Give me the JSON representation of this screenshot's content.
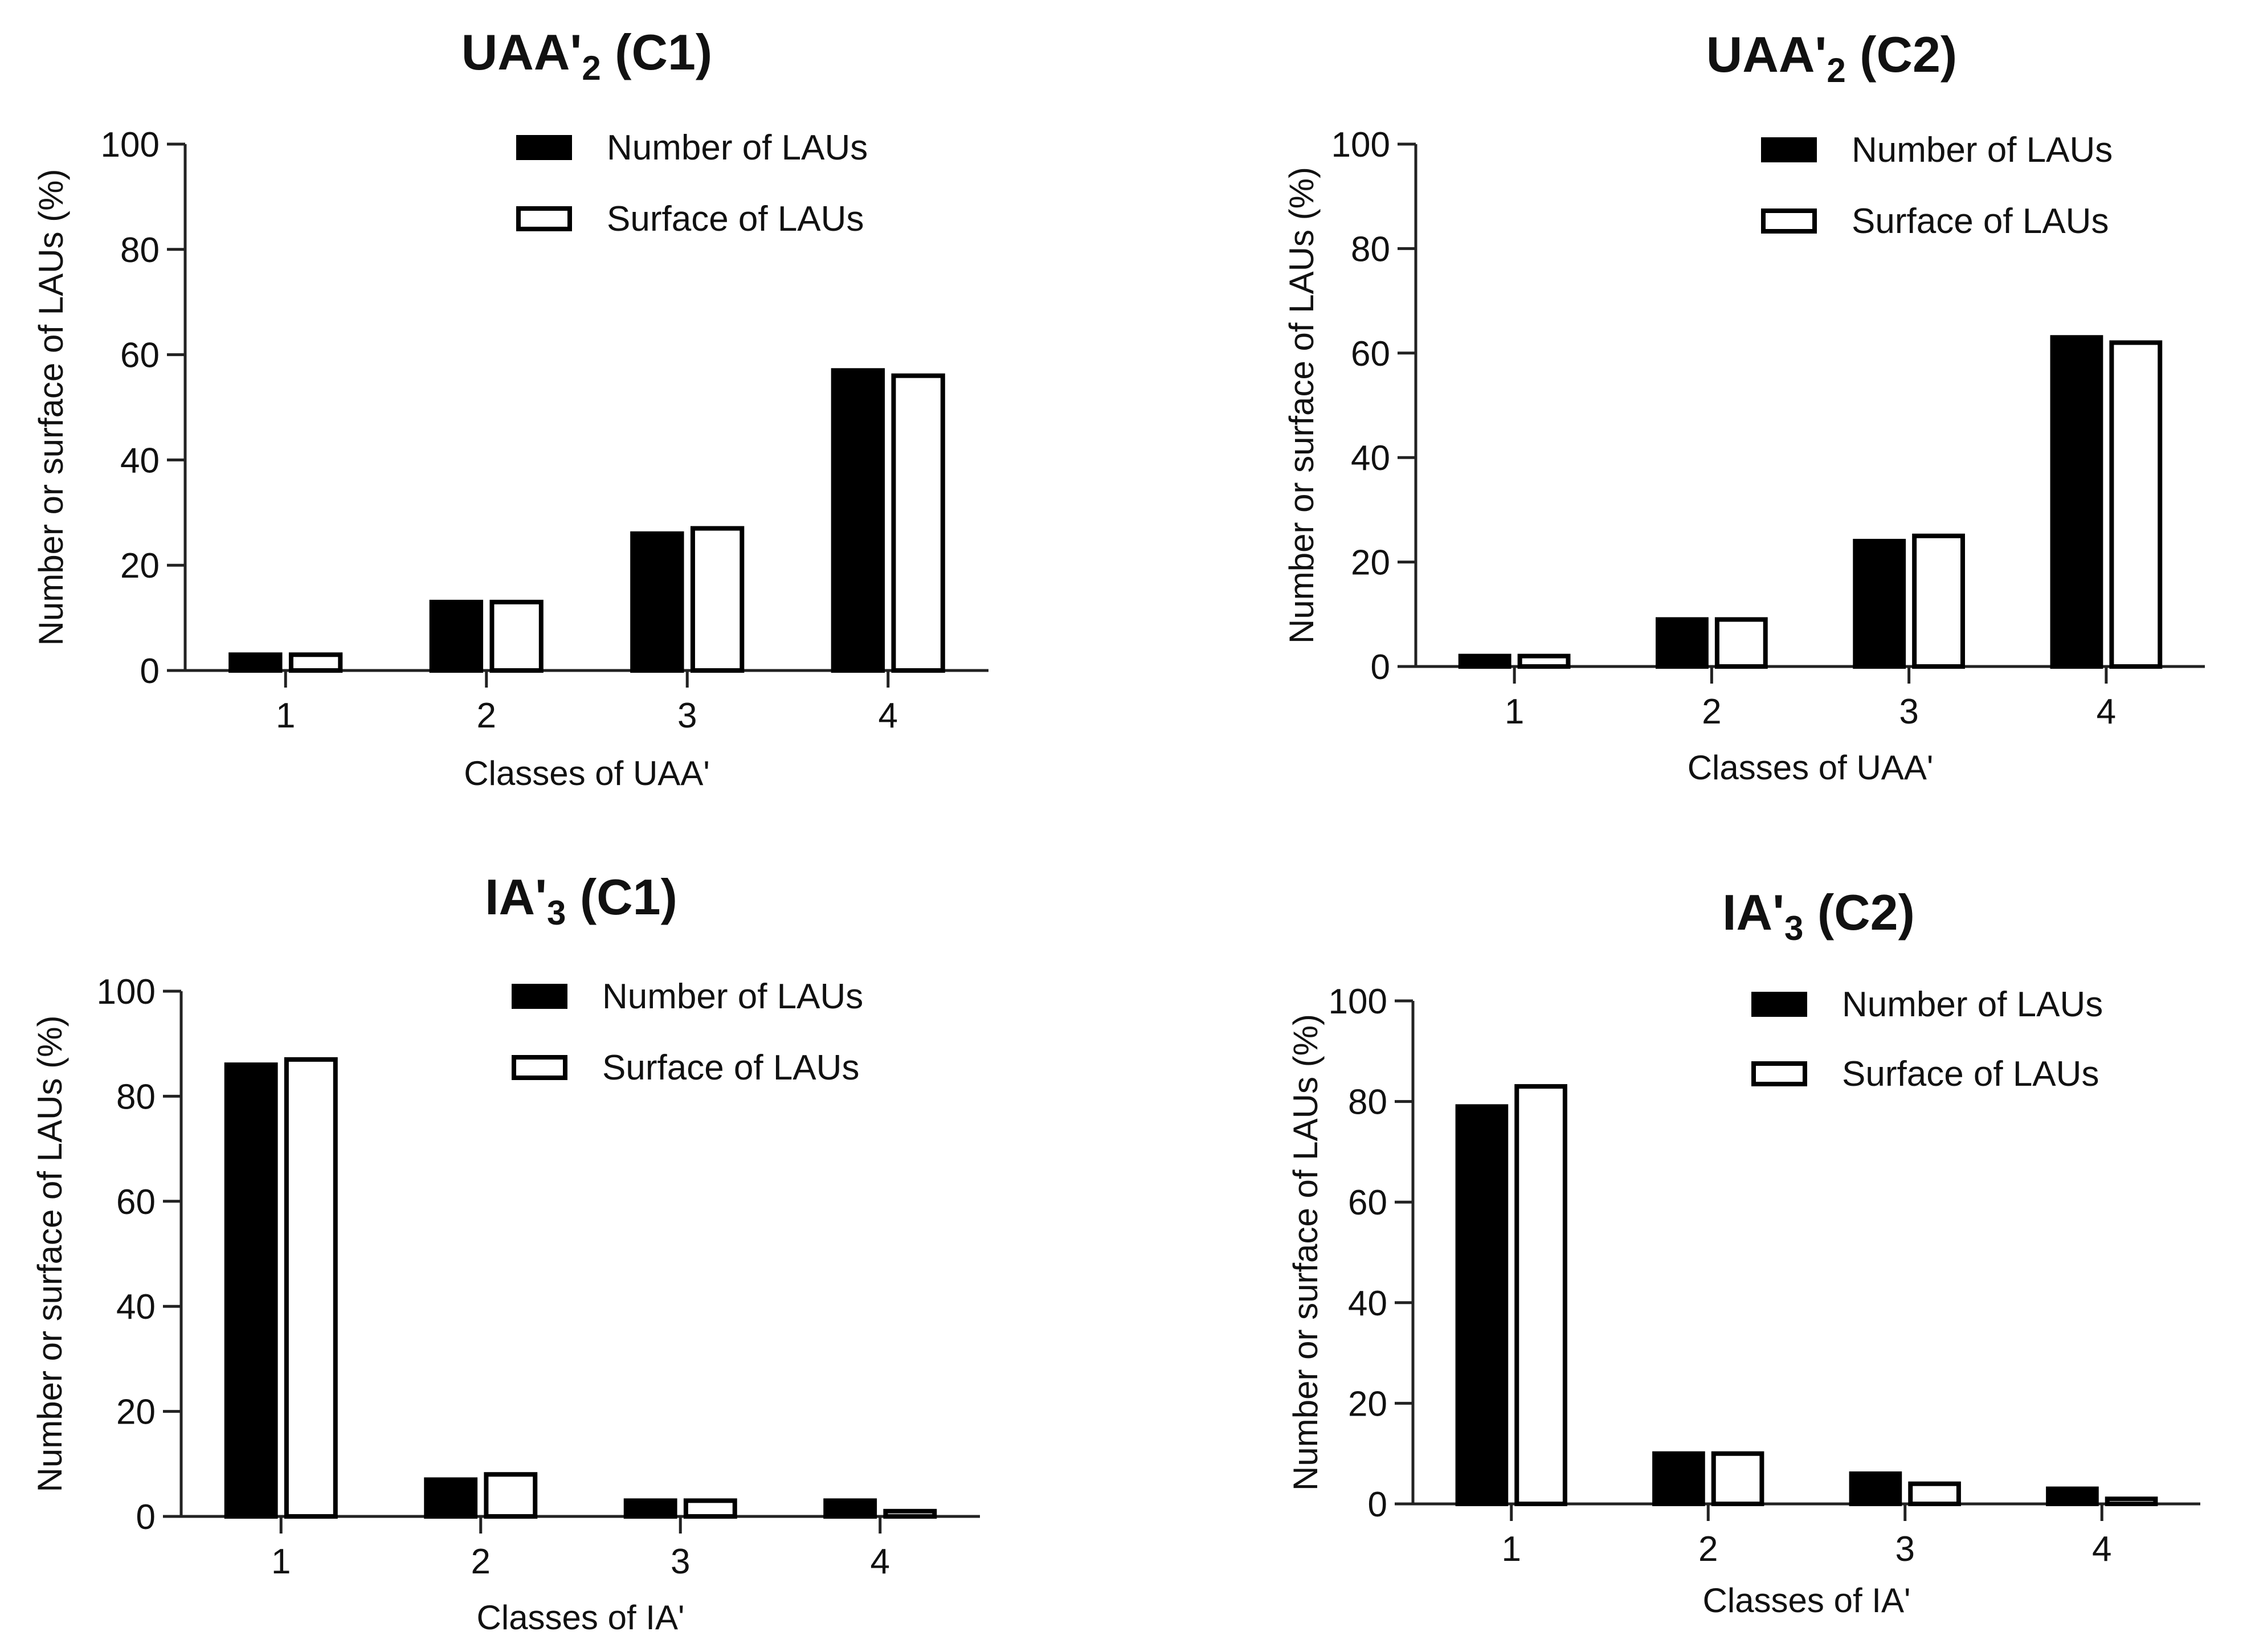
{
  "chart_data": [
    {
      "type": "bar",
      "title": "UAA'",
      "title_subscript": "2",
      "title_suffix": " (C1)",
      "xlabel": "Classes of UAA'",
      "ylabel": "Number or surface of LAUs (%)",
      "categories": [
        "1",
        "2",
        "3",
        "4"
      ],
      "yticks": [
        "0",
        "20",
        "40",
        "60",
        "80",
        "100"
      ],
      "ylim": [
        0,
        100
      ],
      "legend_position": "top-right",
      "series": [
        {
          "name": "Number of LAUs",
          "fill": "#000000",
          "values": [
            3,
            13,
            26,
            57
          ]
        },
        {
          "name": "Surface of LAUs",
          "fill": "#ffffff",
          "values": [
            3,
            13,
            27,
            56
          ]
        }
      ]
    },
    {
      "type": "bar",
      "title": "UAA'",
      "title_subscript": "2",
      "title_suffix": " (C2)",
      "xlabel": "Classes of UAA'",
      "ylabel": "Number or surface of LAUs (%)",
      "categories": [
        "1",
        "2",
        "3",
        "4"
      ],
      "yticks": [
        "0",
        "20",
        "40",
        "60",
        "80",
        "100"
      ],
      "ylim": [
        0,
        100
      ],
      "legend_position": "top-right",
      "series": [
        {
          "name": "Number of LAUs",
          "fill": "#000000",
          "values": [
            2,
            9,
            24,
            63
          ]
        },
        {
          "name": "Surface of LAUs",
          "fill": "#ffffff",
          "values": [
            2,
            9,
            25,
            62
          ]
        }
      ]
    },
    {
      "type": "bar",
      "title": "IA'",
      "title_subscript": "3",
      "title_suffix": " (C1)",
      "xlabel": "Classes of IA'",
      "ylabel": "Number or surface of LAUs (%)",
      "categories": [
        "1",
        "2",
        "3",
        "4"
      ],
      "yticks": [
        "0",
        "20",
        "40",
        "60",
        "80",
        "100"
      ],
      "ylim": [
        0,
        100
      ],
      "legend_position": "top-right",
      "series": [
        {
          "name": "Number of LAUs",
          "fill": "#000000",
          "values": [
            86,
            7,
            3,
            3
          ]
        },
        {
          "name": "Surface of LAUs",
          "fill": "#ffffff",
          "values": [
            87,
            8,
            3,
            1
          ]
        }
      ]
    },
    {
      "type": "bar",
      "title": "IA'",
      "title_subscript": "3",
      "title_suffix": " (C2)",
      "xlabel": "Classes of IA'",
      "ylabel": "Number or surface of LAUs (%)",
      "categories": [
        "1",
        "2",
        "3",
        "4"
      ],
      "yticks": [
        "0",
        "20",
        "40",
        "60",
        "80",
        "100"
      ],
      "ylim": [
        0,
        100
      ],
      "legend_position": "top-right",
      "series": [
        {
          "name": "Number of LAUs",
          "fill": "#000000",
          "values": [
            79,
            10,
            6,
            3
          ]
        },
        {
          "name": "Surface of LAUs",
          "fill": "#ffffff",
          "values": [
            83,
            10,
            4,
            1
          ]
        }
      ]
    }
  ]
}
